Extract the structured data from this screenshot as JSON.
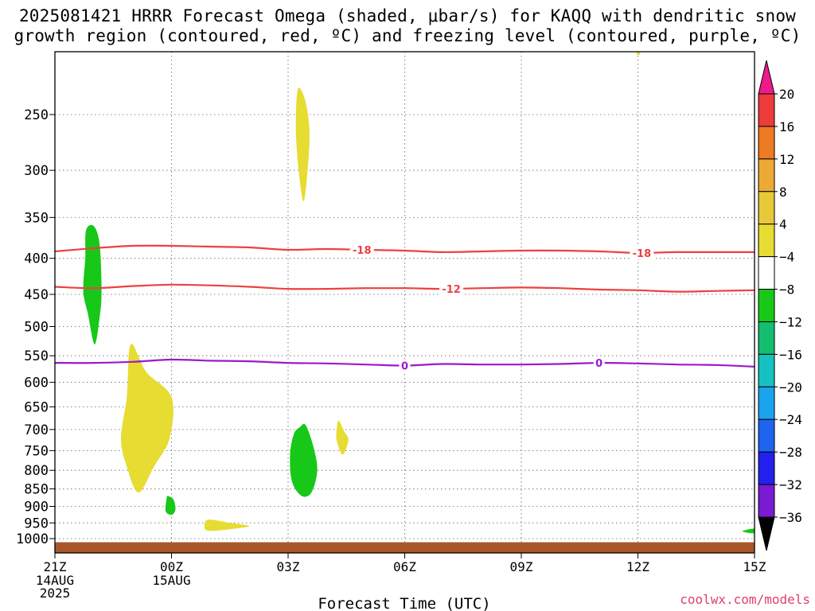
{
  "title_line1": "2025081421 HRRR Forecast Omega (shaded, μbar/s) for KAQQ with dendritic snow",
  "title_line2": "growth region (contoured, red, ºC) and freezing level (contoured, purple, ºC)",
  "credit": "coolwx.com/models",
  "chart_data": {
    "type": "contour",
    "title": "2025081421 HRRR Forecast Omega (shaded, μbar/s) for KAQQ with dendritic snow growth region (contoured, red, ºC) and freezing level (contoured, purple, ºC)",
    "xlabel": "Forecast Time (UTC)",
    "ylabel": "",
    "x_ticks": [
      {
        "hour": 0,
        "label": "21Z",
        "sub": [
          "14AUG",
          "2025"
        ]
      },
      {
        "hour": 3,
        "label": "00Z",
        "sub": [
          "15AUG"
        ]
      },
      {
        "hour": 6,
        "label": "03Z",
        "sub": []
      },
      {
        "hour": 9,
        "label": "06Z",
        "sub": []
      },
      {
        "hour": 12,
        "label": "09Z",
        "sub": []
      },
      {
        "hour": 15,
        "label": "12Z",
        "sub": []
      },
      {
        "hour": 18,
        "label": "15Z",
        "sub": []
      }
    ],
    "x_range_hours": [
      0,
      18
    ],
    "y_ticks": [
      250,
      300,
      350,
      400,
      450,
      500,
      550,
      600,
      650,
      700,
      750,
      800,
      850,
      900,
      950,
      1000
    ],
    "y_range_hPa": [
      200,
      1025
    ],
    "y_scale": "log-pressure",
    "grid": true,
    "colorbar": {
      "labels": [
        20,
        16,
        12,
        8,
        4,
        -4,
        -8,
        -12,
        -16,
        -20,
        -24,
        -28,
        -32,
        -36
      ],
      "colors": [
        "#ee1a8c",
        "#ee3b3b",
        "#ee7a22",
        "#eda935",
        "#e8c839",
        "#e6dc32",
        "#ffffff",
        "#18c818",
        "#13be71",
        "#14c2c2",
        "#1aa3ee",
        "#1e64ee",
        "#2420ee",
        "#7a1ad2",
        "#a312c8",
        "#a8a8a8",
        "#000000"
      ]
    },
    "contours": [
      {
        "name": "-18",
        "color": "#ee4040",
        "label": "-18",
        "points": [
          [
            0,
            391
          ],
          [
            1,
            387
          ],
          [
            2,
            384
          ],
          [
            3,
            384
          ],
          [
            4,
            385
          ],
          [
            5,
            386
          ],
          [
            6,
            389
          ],
          [
            7,
            388
          ],
          [
            8,
            389
          ],
          [
            9,
            390
          ],
          [
            10,
            392
          ],
          [
            11,
            391
          ],
          [
            12,
            390
          ],
          [
            13,
            390
          ],
          [
            14,
            391
          ],
          [
            15,
            393
          ],
          [
            16,
            392
          ],
          [
            17,
            392
          ],
          [
            18,
            392
          ]
        ],
        "label_hours": [
          7.9,
          15.1
        ]
      },
      {
        "name": "-12",
        "color": "#ee4040",
        "label": "-12",
        "points": [
          [
            0,
            439
          ],
          [
            1,
            441
          ],
          [
            2,
            438
          ],
          [
            3,
            436
          ],
          [
            4,
            437
          ],
          [
            5,
            439
          ],
          [
            6,
            442
          ],
          [
            7,
            442
          ],
          [
            8,
            441
          ],
          [
            9,
            441
          ],
          [
            10,
            442
          ],
          [
            11,
            441
          ],
          [
            12,
            440
          ],
          [
            13,
            441
          ],
          [
            14,
            443
          ],
          [
            15,
            444
          ],
          [
            16,
            446
          ],
          [
            17,
            445
          ],
          [
            18,
            444
          ]
        ],
        "label_hours": [
          10.2
        ]
      },
      {
        "name": "0",
        "color": "#9a1acc",
        "label": "0",
        "points": [
          [
            0,
            563
          ],
          [
            1,
            563
          ],
          [
            2,
            561
          ],
          [
            3,
            557
          ],
          [
            4,
            559
          ],
          [
            5,
            560
          ],
          [
            6,
            563
          ],
          [
            7,
            564
          ],
          [
            8,
            566
          ],
          [
            9,
            568
          ],
          [
            10,
            565
          ],
          [
            11,
            566
          ],
          [
            12,
            566
          ],
          [
            13,
            565
          ],
          [
            14,
            563
          ],
          [
            15,
            564
          ],
          [
            16,
            566
          ],
          [
            17,
            567
          ],
          [
            18,
            570
          ]
        ],
        "label_hours": [
          9.0,
          14.0
        ]
      }
    ],
    "omega_regions": [
      {
        "value": -6,
        "color": "#18c818",
        "points": [
          [
            0.8,
            365
          ],
          [
            1.0,
            360
          ],
          [
            1.15,
            382
          ],
          [
            1.2,
            445
          ],
          [
            1.15,
            485
          ],
          [
            1.02,
            530
          ],
          [
            0.85,
            480
          ],
          [
            0.73,
            445
          ],
          [
            0.78,
            400
          ]
        ]
      },
      {
        "value": 6,
        "color": "#e6dc32",
        "points": [
          [
            1.95,
            530
          ],
          [
            2.35,
            580
          ],
          [
            3.0,
            630
          ],
          [
            2.95,
            720
          ],
          [
            2.55,
            790
          ],
          [
            2.15,
            860
          ],
          [
            1.85,
            790
          ],
          [
            1.7,
            720
          ],
          [
            1.85,
            630
          ]
        ]
      },
      {
        "value": -6,
        "color": "#18c818",
        "points": [
          [
            2.9,
            870
          ],
          [
            3.05,
            880
          ],
          [
            3.1,
            910
          ],
          [
            3.0,
            925
          ],
          [
            2.85,
            915
          ],
          [
            2.87,
            880
          ]
        ]
      },
      {
        "value": 6,
        "color": "#e6dc32",
        "points": [
          [
            3.95,
            940
          ],
          [
            4.5,
            950
          ],
          [
            5.0,
            960
          ],
          [
            4.5,
            970
          ],
          [
            3.95,
            975
          ],
          [
            3.85,
            960
          ]
        ]
      },
      {
        "value": 6,
        "color": "#e6dc32",
        "points": [
          [
            6.25,
            230
          ],
          [
            6.45,
            240
          ],
          [
            6.55,
            270
          ],
          [
            6.42,
            330
          ],
          [
            6.3,
            310
          ],
          [
            6.2,
            265
          ]
        ]
      },
      {
        "value": -6,
        "color": "#18c818",
        "points": [
          [
            6.3,
            695
          ],
          [
            6.45,
            690
          ],
          [
            6.65,
            740
          ],
          [
            6.75,
            800
          ],
          [
            6.6,
            860
          ],
          [
            6.35,
            870
          ],
          [
            6.1,
            830
          ],
          [
            6.05,
            760
          ],
          [
            6.15,
            710
          ]
        ]
      },
      {
        "value": 6,
        "color": "#e6dc32",
        "points": [
          [
            7.3,
            680
          ],
          [
            7.45,
            705
          ],
          [
            7.55,
            725
          ],
          [
            7.4,
            760
          ],
          [
            7.25,
            725
          ],
          [
            7.25,
            700
          ]
        ]
      },
      {
        "value": 6,
        "color": "#e6dc32",
        "points": [
          [
            15.0,
            198
          ],
          [
            15.05,
            205
          ],
          [
            14.97,
            205
          ]
        ]
      },
      {
        "value": -6,
        "color": "#18c818",
        "points": [
          [
            17.7,
            975
          ],
          [
            18.0,
            968
          ],
          [
            18.0,
            982
          ],
          [
            17.78,
            980
          ]
        ]
      }
    ],
    "ground": {
      "color": "#a9562a",
      "top_hPa": 1012
    }
  }
}
